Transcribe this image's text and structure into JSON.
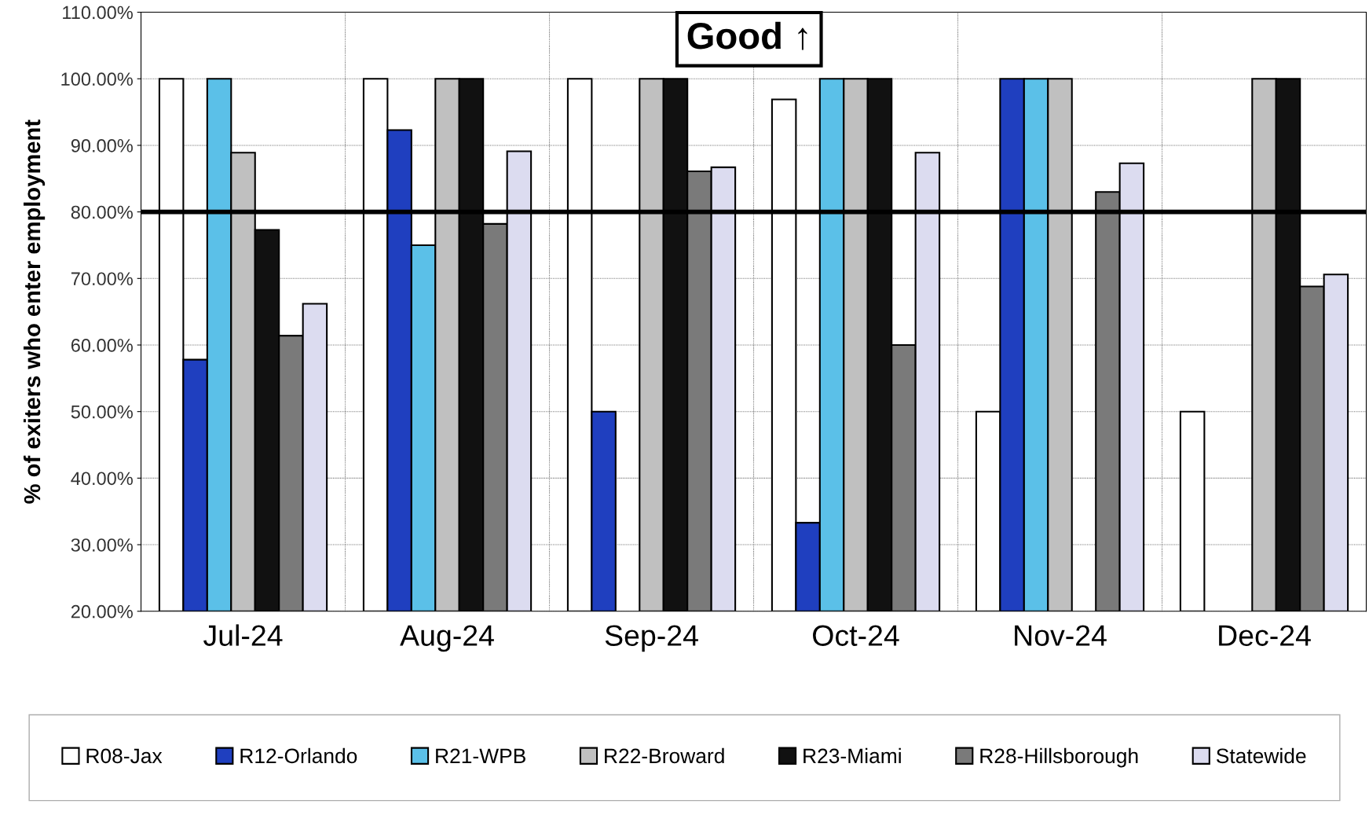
{
  "chart_data": {
    "type": "bar",
    "ylabel": "% of exiters who enter employment",
    "categories": [
      "Jul-24",
      "Aug-24",
      "Sep-24",
      "Oct-24",
      "Nov-24",
      "Dec-24"
    ],
    "series": [
      {
        "name": "R08-Jax",
        "color": "#ffffff",
        "values": [
          100,
          100,
          100,
          96.9,
          50,
          50
        ]
      },
      {
        "name": "R12-Orlando",
        "color": "#1f3fbf",
        "values": [
          57.8,
          92.3,
          50,
          33.3,
          100,
          null
        ]
      },
      {
        "name": "R21-WPB",
        "color": "#5bc0e8",
        "values": [
          100,
          75,
          null,
          100,
          100,
          null
        ]
      },
      {
        "name": "R22-Broward",
        "color": "#c0c0c0",
        "values": [
          88.9,
          100,
          100,
          100,
          100,
          100
        ]
      },
      {
        "name": "R23-Miami",
        "color": "#111111",
        "values": [
          77.3,
          100,
          100,
          100,
          null,
          100
        ]
      },
      {
        "name": "R28-Hillsborough",
        "color": "#7a7a7a",
        "values": [
          61.4,
          78.2,
          86.1,
          60,
          83,
          68.8
        ]
      },
      {
        "name": "Statewide",
        "color": "#dcdcf0",
        "values": [
          66.2,
          89.1,
          86.7,
          88.9,
          87.3,
          70.6
        ]
      }
    ],
    "ylim": [
      20,
      110
    ],
    "yticks": [
      {
        "value": 20,
        "label": "20.00%"
      },
      {
        "value": 30,
        "label": "30.00%"
      },
      {
        "value": 40,
        "label": "40.00%"
      },
      {
        "value": 50,
        "label": "50.00%"
      },
      {
        "value": 60,
        "label": "60.00%"
      },
      {
        "value": 70,
        "label": "70.00%"
      },
      {
        "value": 80,
        "label": "80.00%"
      },
      {
        "value": 90,
        "label": "90.00%"
      },
      {
        "value": 100,
        "label": "100.00%"
      },
      {
        "value": 110,
        "label": "110.00%"
      }
    ],
    "ref_lines": [
      {
        "axis": "y",
        "value": 80,
        "label": null,
        "color": "#000000"
      }
    ],
    "annotations": [
      "Good ↑"
    ],
    "grid": true,
    "legend": "bottom"
  }
}
